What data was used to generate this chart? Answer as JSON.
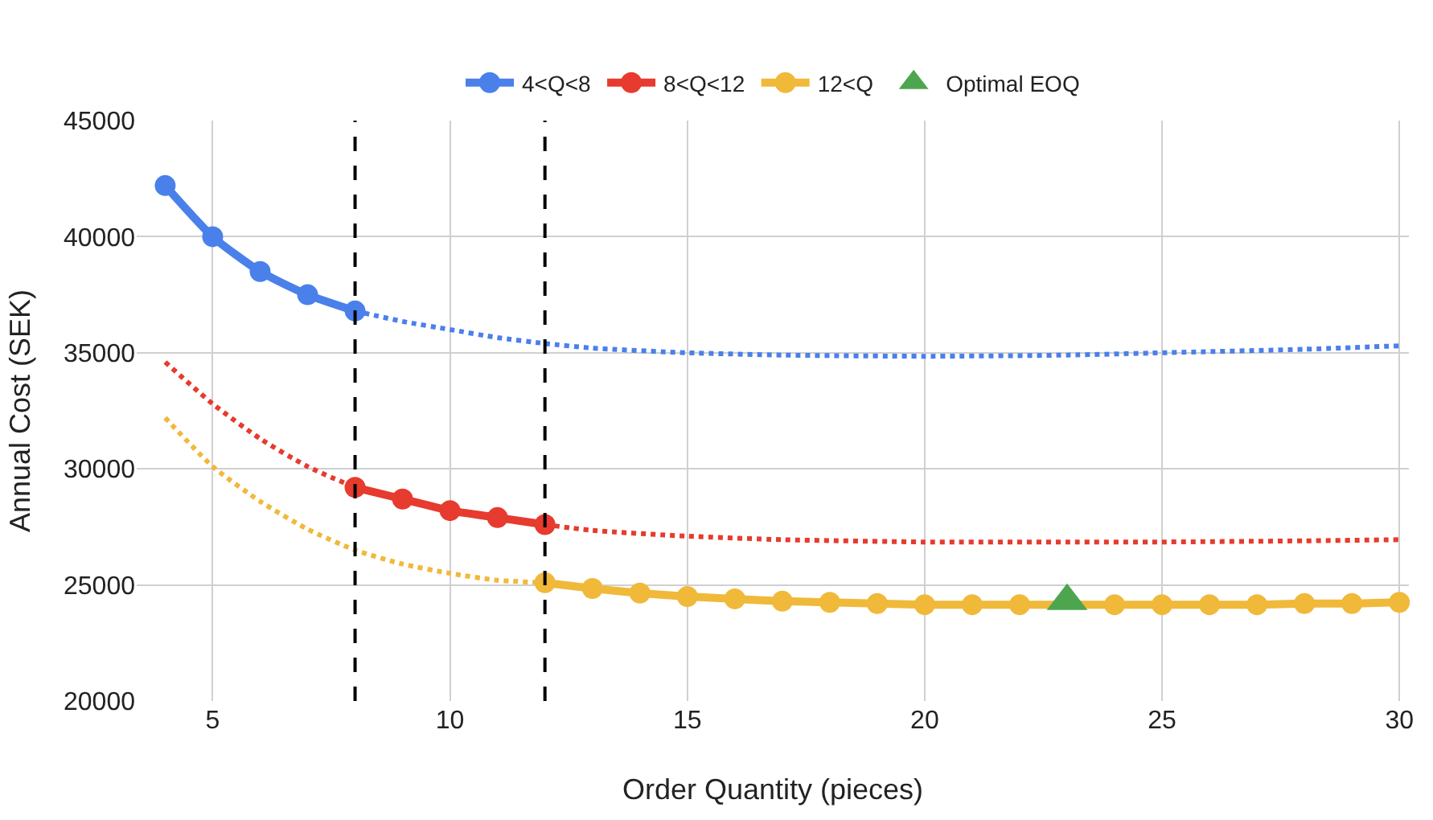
{
  "chart_data": {
    "type": "line",
    "xlabel": "Order Quantity (pieces)",
    "ylabel": "Annual Cost (SEK)",
    "xlim": [
      3.4,
      30.2
    ],
    "xticks": [
      5,
      10,
      15,
      20,
      25,
      30
    ],
    "ylim": [
      20000,
      45000
    ],
    "yticks": [
      20000,
      25000,
      30000,
      35000,
      40000,
      45000
    ],
    "grid": true,
    "legend": "top",
    "line_style": "solid",
    "series": [
      {
        "type": "line",
        "line_style": "dotted",
        "marker": "none",
        "color": "#4a80ea",
        "x": [
          8,
          9,
          10,
          11,
          12,
          13,
          15,
          17,
          20,
          23,
          25,
          28,
          30
        ],
        "values": [
          36800,
          36350,
          36000,
          35650,
          35400,
          35200,
          35000,
          34900,
          34850,
          34900,
          35000,
          35150,
          35300
        ]
      },
      {
        "type": "line",
        "line_style": "dotted",
        "marker": "none",
        "color": "#e63b2e",
        "x": [
          4,
          5,
          6,
          7,
          8
        ],
        "values": [
          34600,
          32800,
          31300,
          30100,
          29200
        ]
      },
      {
        "type": "line",
        "line_style": "dotted",
        "marker": "none",
        "color": "#e63b2e",
        "x": [
          12,
          13,
          15,
          17,
          20,
          23,
          25,
          28,
          30
        ],
        "values": [
          27600,
          27350,
          27100,
          26950,
          26850,
          26850,
          26850,
          26900,
          26950
        ]
      },
      {
        "type": "line",
        "line_style": "dotted",
        "marker": "none",
        "color": "#f0b93a",
        "x": [
          4,
          5,
          6,
          7,
          8,
          9,
          10,
          11,
          12
        ],
        "values": [
          32200,
          30100,
          28600,
          27400,
          26500,
          25900,
          25500,
          25200,
          25100
        ]
      },
      {
        "name": "4<Q<8",
        "marker": "circle",
        "color": "#4a80ea",
        "x": [
          4,
          5,
          6,
          7,
          8
        ],
        "values": [
          42200,
          40000,
          38500,
          37500,
          36800
        ]
      },
      {
        "name": "8<Q<12",
        "marker": "circle",
        "color": "#e63b2e",
        "x": [
          8,
          9,
          10,
          11,
          12
        ],
        "values": [
          29200,
          28700,
          28200,
          27900,
          27600
        ]
      },
      {
        "name": "12<Q",
        "marker": "circle",
        "color": "#f0b93a",
        "x": [
          12,
          13,
          14,
          15,
          16,
          17,
          18,
          19,
          20,
          21,
          22,
          23,
          24,
          25,
          26,
          27,
          28,
          29,
          30
        ],
        "values": [
          25100,
          24850,
          24650,
          24500,
          24400,
          24300,
          24250,
          24200,
          24150,
          24150,
          24150,
          null,
          24150,
          24150,
          24150,
          24150,
          24200,
          24200,
          24250
        ]
      },
      {
        "name": "Optimal EOQ",
        "type": "scatter",
        "marker": "triangle",
        "color": "#4ea54f",
        "x": [
          23
        ],
        "values": [
          24300
        ]
      }
    ],
    "ref_lines": [
      {
        "axis": "x",
        "value": 8,
        "color": "#000000",
        "line_style": "dashed"
      },
      {
        "axis": "x",
        "value": 12,
        "color": "#000000",
        "line_style": "dashed"
      }
    ]
  }
}
